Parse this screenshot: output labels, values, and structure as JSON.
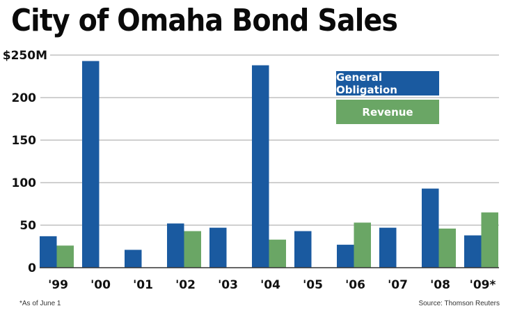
{
  "chart_data": {
    "type": "bar",
    "title": "City of Omaha Bond Sales",
    "xlabel": "",
    "ylabel": "",
    "ylim": [
      0,
      250
    ],
    "yticks": [
      {
        "value": 0,
        "label": "0"
      },
      {
        "value": 50,
        "label": "50"
      },
      {
        "value": 100,
        "label": "100"
      },
      {
        "value": 150,
        "label": "150"
      },
      {
        "value": 200,
        "label": "200"
      },
      {
        "value": 250,
        "label": "$250M"
      }
    ],
    "grid": true,
    "legend_position": "top-right",
    "categories": [
      "'99",
      "'00",
      "'01",
      "'02",
      "'03",
      "'04",
      "'05",
      "'06",
      "'07",
      "'08",
      "'09*"
    ],
    "series": [
      {
        "name": "General Obligation",
        "color": "#1a5aa0",
        "values": [
          37,
          243,
          21,
          52,
          47,
          238,
          43,
          27,
          47,
          93,
          38
        ]
      },
      {
        "name": "Revenue",
        "color": "#6aa665",
        "values": [
          26,
          0,
          0,
          43,
          0,
          33,
          0,
          53,
          0,
          46,
          65
        ]
      }
    ],
    "footnote": "*As of June 1",
    "source": "Source: Thomson Reuters"
  }
}
